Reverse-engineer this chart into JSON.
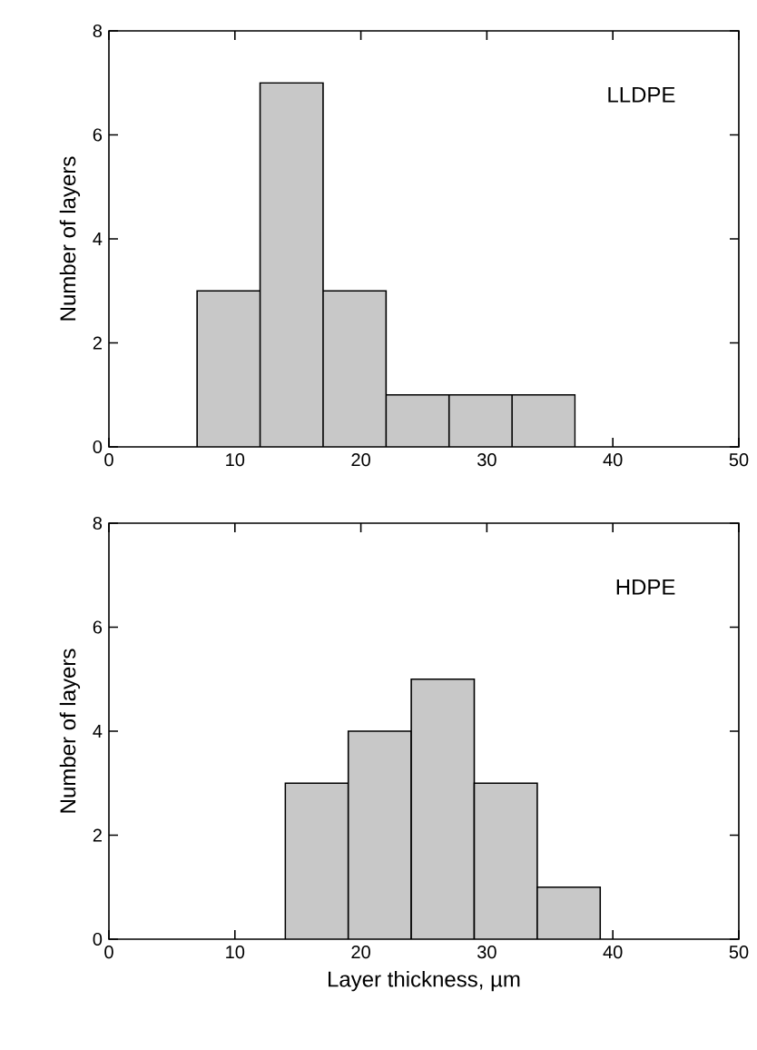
{
  "chart_data": [
    {
      "type": "histogram",
      "ylabel": "Number of layers",
      "annotations": [
        "LLDPE"
      ],
      "bins": [
        7,
        12,
        17,
        22,
        27,
        32,
        37
      ],
      "values": [
        3,
        7,
        3,
        1,
        1,
        1
      ],
      "color": "#c8c8c8",
      "xlim": [
        0,
        50
      ],
      "xticks": [
        0,
        10,
        20,
        30,
        40,
        50
      ],
      "ylim": [
        0,
        8
      ],
      "yticks": [
        0,
        2,
        4,
        6,
        8
      ],
      "grid": false
    },
    {
      "type": "histogram",
      "xlabel": "Layer thickness, µm",
      "ylabel": "Number of layers",
      "annotations": [
        "HDPE"
      ],
      "bins": [
        14,
        19,
        24,
        29,
        34,
        39
      ],
      "values": [
        3,
        4,
        5,
        3,
        1
      ],
      "color": "#c8c8c8",
      "xlim": [
        0,
        50
      ],
      "xticks": [
        0,
        10,
        20,
        30,
        40,
        50
      ],
      "ylim": [
        0,
        8
      ],
      "yticks": [
        0,
        2,
        4,
        6,
        8
      ],
      "grid": false
    }
  ]
}
